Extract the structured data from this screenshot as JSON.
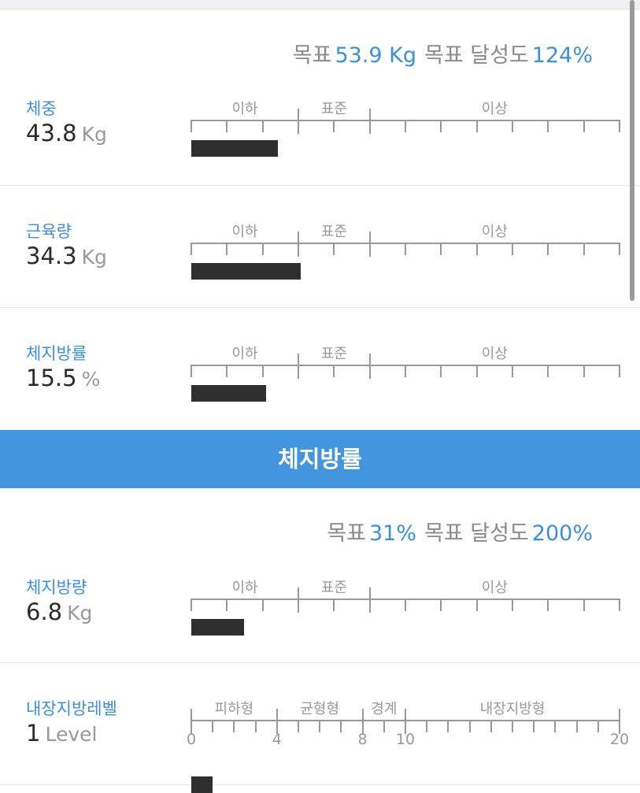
{
  "colors": {
    "accent": "#3d8fdb",
    "banner": "#4396de",
    "bar": "#2f2f2f"
  },
  "section1": {
    "goal": {
      "goal_label": "목표",
      "goal_value": "53.9 Kg",
      "achieve_label": "목표 달성도",
      "achieve_value": "124%"
    },
    "rows": [
      {
        "label": "체중",
        "value": "43.8",
        "unit": "Kg",
        "zones": [
          "이하",
          "표준",
          "이상"
        ],
        "level": 0.203
      },
      {
        "label": "근육량",
        "value": "34.3",
        "unit": "Kg",
        "zones": [
          "이하",
          "표준",
          "이상"
        ],
        "level": 0.256
      },
      {
        "label": "체지방률",
        "value": "15.5",
        "unit": "%",
        "zones": [
          "이하",
          "표준",
          "이상"
        ],
        "level": 0.174
      }
    ]
  },
  "section2": {
    "title": "체지방률",
    "goal": {
      "goal_label": "목표",
      "goal_value": "31%",
      "achieve_label": "목표 달성도",
      "achieve_value": "200%"
    },
    "rows": [
      {
        "label": "체지방량",
        "value": "6.8",
        "unit": "Kg",
        "zones": [
          "이하",
          "표준",
          "이상"
        ],
        "level": 0.124
      },
      {
        "label": "내장지방레벨",
        "value": "1",
        "unit": "Level",
        "zones": [
          "피하형",
          "균형형",
          "경계",
          "내장지방형"
        ],
        "ticks": [
          "0",
          "4",
          "8",
          "10",
          "20"
        ],
        "level_value": 1,
        "max": 20
      }
    ]
  }
}
